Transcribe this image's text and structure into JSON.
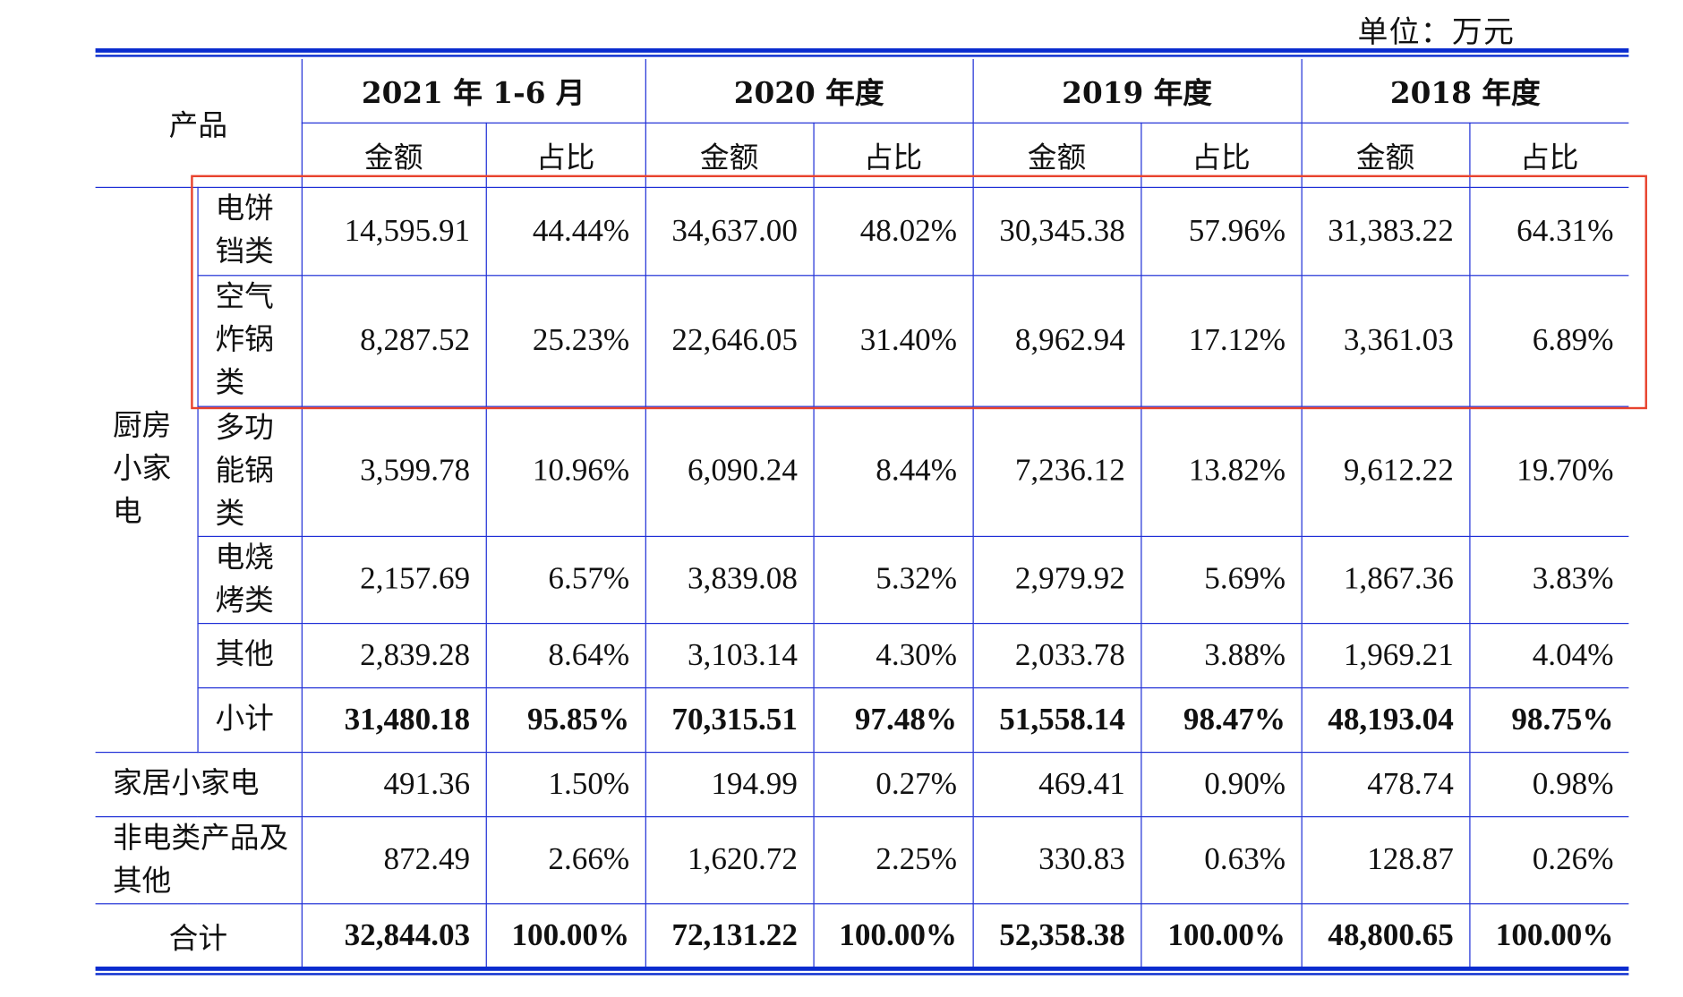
{
  "unit_label": "单位：万元",
  "header": {
    "product": "产品",
    "periods": [
      "2021 年 1-6 月",
      "2020 年度",
      "2019 年度",
      "2018 年度"
    ],
    "amount": "金额",
    "ratio": "占比"
  },
  "group_label": "厨房小家电",
  "kitchen_rows": [
    {
      "name": "电饼铛类",
      "values": [
        "14,595.91",
        "44.44%",
        "34,637.00",
        "48.02%",
        "30,345.38",
        "57.96%",
        "31,383.22",
        "64.31%"
      ]
    },
    {
      "name": "空气炸锅类",
      "values": [
        "8,287.52",
        "25.23%",
        "22,646.05",
        "31.40%",
        "8,962.94",
        "17.12%",
        "3,361.03",
        "6.89%"
      ]
    },
    {
      "name": "多功能锅类",
      "values": [
        "3,599.78",
        "10.96%",
        "6,090.24",
        "8.44%",
        "7,236.12",
        "13.82%",
        "9,612.22",
        "19.70%"
      ]
    },
    {
      "name": "电烧烤类",
      "values": [
        "2,157.69",
        "6.57%",
        "3,839.08",
        "5.32%",
        "2,979.92",
        "5.69%",
        "1,867.36",
        "3.83%"
      ]
    },
    {
      "name": "其他",
      "values": [
        "2,839.28",
        "8.64%",
        "3,103.14",
        "4.30%",
        "2,033.78",
        "3.88%",
        "1,969.21",
        "4.04%"
      ]
    },
    {
      "name": "小计",
      "bold": true,
      "values": [
        "31,480.18",
        "95.85%",
        "70,315.51",
        "97.48%",
        "51,558.14",
        "98.47%",
        "48,193.04",
        "98.75%"
      ]
    }
  ],
  "other_rows": [
    {
      "name": "家居小家电",
      "values": [
        "491.36",
        "1.50%",
        "194.99",
        "0.27%",
        "469.41",
        "0.90%",
        "478.74",
        "0.98%"
      ]
    },
    {
      "name": "非电类产品及其他",
      "values": [
        "872.49",
        "2.66%",
        "1,620.72",
        "2.25%",
        "330.83",
        "0.63%",
        "128.87",
        "0.26%"
      ]
    },
    {
      "name": "合计",
      "bold": true,
      "center": true,
      "values": [
        "32,844.03",
        "100.00%",
        "72,131.22",
        "100.00%",
        "52,358.38",
        "100.00%",
        "48,800.65",
        "100.00%"
      ]
    }
  ],
  "colors": {
    "rule": "#1f2fd6",
    "highlight": "#e8432e"
  }
}
